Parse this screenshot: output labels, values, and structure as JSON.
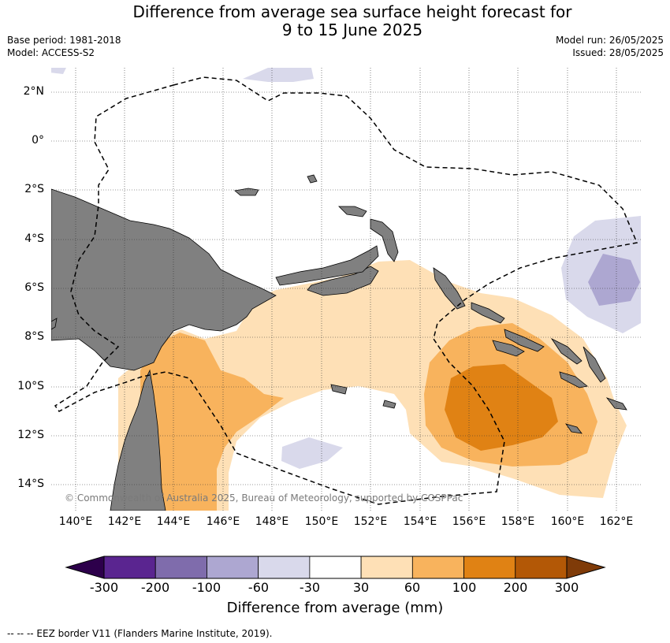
{
  "header": {
    "title_line1": "Difference from average sea surface height forecast for",
    "title_line2": "9 to 15 June 2025",
    "base_period": "Base period: 1981-2018",
    "model": "Model: ACCESS-S2",
    "model_run": "Model run: 26/05/2025",
    "issued": "Issued: 28/05/2025"
  },
  "map": {
    "lat_labels": [
      "2°N",
      "0°",
      "2°S",
      "4°S",
      "6°S",
      "8°S",
      "10°S",
      "12°S",
      "14°S"
    ],
    "lon_labels": [
      "140°E",
      "142°E",
      "144°E",
      "146°E",
      "148°E",
      "150°E",
      "152°E",
      "154°E",
      "156°E",
      "158°E",
      "160°E",
      "162°E"
    ],
    "copyright": "© Commonwealth of Australia 2025, Bureau of Meteorology, supported by COSPPac",
    "land_color": "#808080",
    "gridlines": true
  },
  "colorbar": {
    "ticks": [
      "-300",
      "-200",
      "-100",
      "-60",
      "-30",
      "30",
      "60",
      "100",
      "200",
      "300"
    ],
    "colors": [
      "#5a2590",
      "#7f6cac",
      "#ada7d1",
      "#d9d9eb",
      "#ffffff",
      "#fee0b6",
      "#f8b35d",
      "#e08214",
      "#b35806"
    ],
    "under_color": "#2d004b",
    "over_color": "#7f3b08",
    "label": "Difference from average (mm)"
  },
  "legend": {
    "eez": "--  --  -- EEZ border V11 (Flanders Marine Institute, 2019)."
  }
}
